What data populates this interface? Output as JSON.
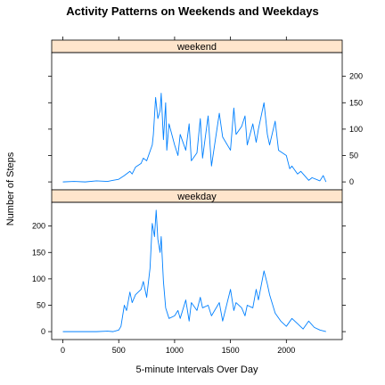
{
  "chart_data": {
    "type": "line",
    "title": "Activity Patterns on Weekends and Weekdays",
    "xlabel": "5-minute Intervals Over Day",
    "ylabel": "Number of Steps",
    "xlim": [
      -100,
      2500
    ],
    "ylim": [
      -15,
      245
    ],
    "x_ticks": [
      0,
      500,
      1000,
      1500,
      2000
    ],
    "y_ticks": [
      0,
      50,
      100,
      150,
      200
    ],
    "grid": false,
    "colors": {
      "line": "#0080ff",
      "strip": "#ffe5cc",
      "border": "#000000"
    },
    "panels": [
      {
        "strip": "weekend",
        "x": [
          0,
          100,
          200,
          300,
          400,
          450,
          500,
          550,
          600,
          620,
          650,
          700,
          720,
          750,
          800,
          810,
          830,
          850,
          870,
          880,
          900,
          920,
          930,
          950,
          1000,
          1030,
          1050,
          1100,
          1130,
          1150,
          1200,
          1230,
          1250,
          1300,
          1330,
          1400,
          1430,
          1500,
          1530,
          1550,
          1600,
          1630,
          1650,
          1700,
          1730,
          1750,
          1800,
          1830,
          1850,
          1900,
          1930,
          2000,
          2030,
          2050,
          2100,
          2130,
          2200,
          2230,
          2300,
          2330,
          2355
        ],
        "y": [
          0,
          1,
          0,
          2,
          1,
          3,
          5,
          12,
          20,
          15,
          28,
          35,
          45,
          40,
          70,
          90,
          160,
          120,
          135,
          168,
          80,
          150,
          60,
          110,
          70,
          50,
          90,
          60,
          110,
          40,
          55,
          120,
          45,
          125,
          30,
          130,
          85,
          60,
          140,
          90,
          105,
          125,
          70,
          110,
          75,
          100,
          150,
          90,
          70,
          115,
          60,
          50,
          25,
          30,
          15,
          20,
          3,
          8,
          2,
          12,
          0
        ]
      },
      {
        "strip": "weekday",
        "x": [
          0,
          100,
          200,
          300,
          400,
          450,
          500,
          520,
          550,
          570,
          600,
          620,
          650,
          700,
          720,
          750,
          780,
          800,
          820,
          835,
          850,
          870,
          880,
          900,
          920,
          950,
          1000,
          1030,
          1050,
          1100,
          1130,
          1150,
          1200,
          1230,
          1250,
          1300,
          1330,
          1400,
          1430,
          1500,
          1530,
          1550,
          1600,
          1630,
          1650,
          1700,
          1730,
          1750,
          1800,
          1830,
          1850,
          1900,
          1950,
          2000,
          2050,
          2100,
          2150,
          2200,
          2250,
          2300,
          2355
        ],
        "y": [
          0,
          0,
          0,
          0,
          1,
          0,
          3,
          10,
          50,
          40,
          75,
          55,
          70,
          80,
          95,
          65,
          120,
          205,
          180,
          230,
          175,
          150,
          180,
          95,
          45,
          25,
          30,
          40,
          25,
          60,
          20,
          55,
          40,
          65,
          45,
          50,
          30,
          55,
          20,
          80,
          40,
          55,
          45,
          30,
          50,
          45,
          80,
          60,
          115,
          90,
          70,
          35,
          20,
          10,
          25,
          15,
          5,
          20,
          8,
          3,
          0
        ]
      }
    ]
  }
}
